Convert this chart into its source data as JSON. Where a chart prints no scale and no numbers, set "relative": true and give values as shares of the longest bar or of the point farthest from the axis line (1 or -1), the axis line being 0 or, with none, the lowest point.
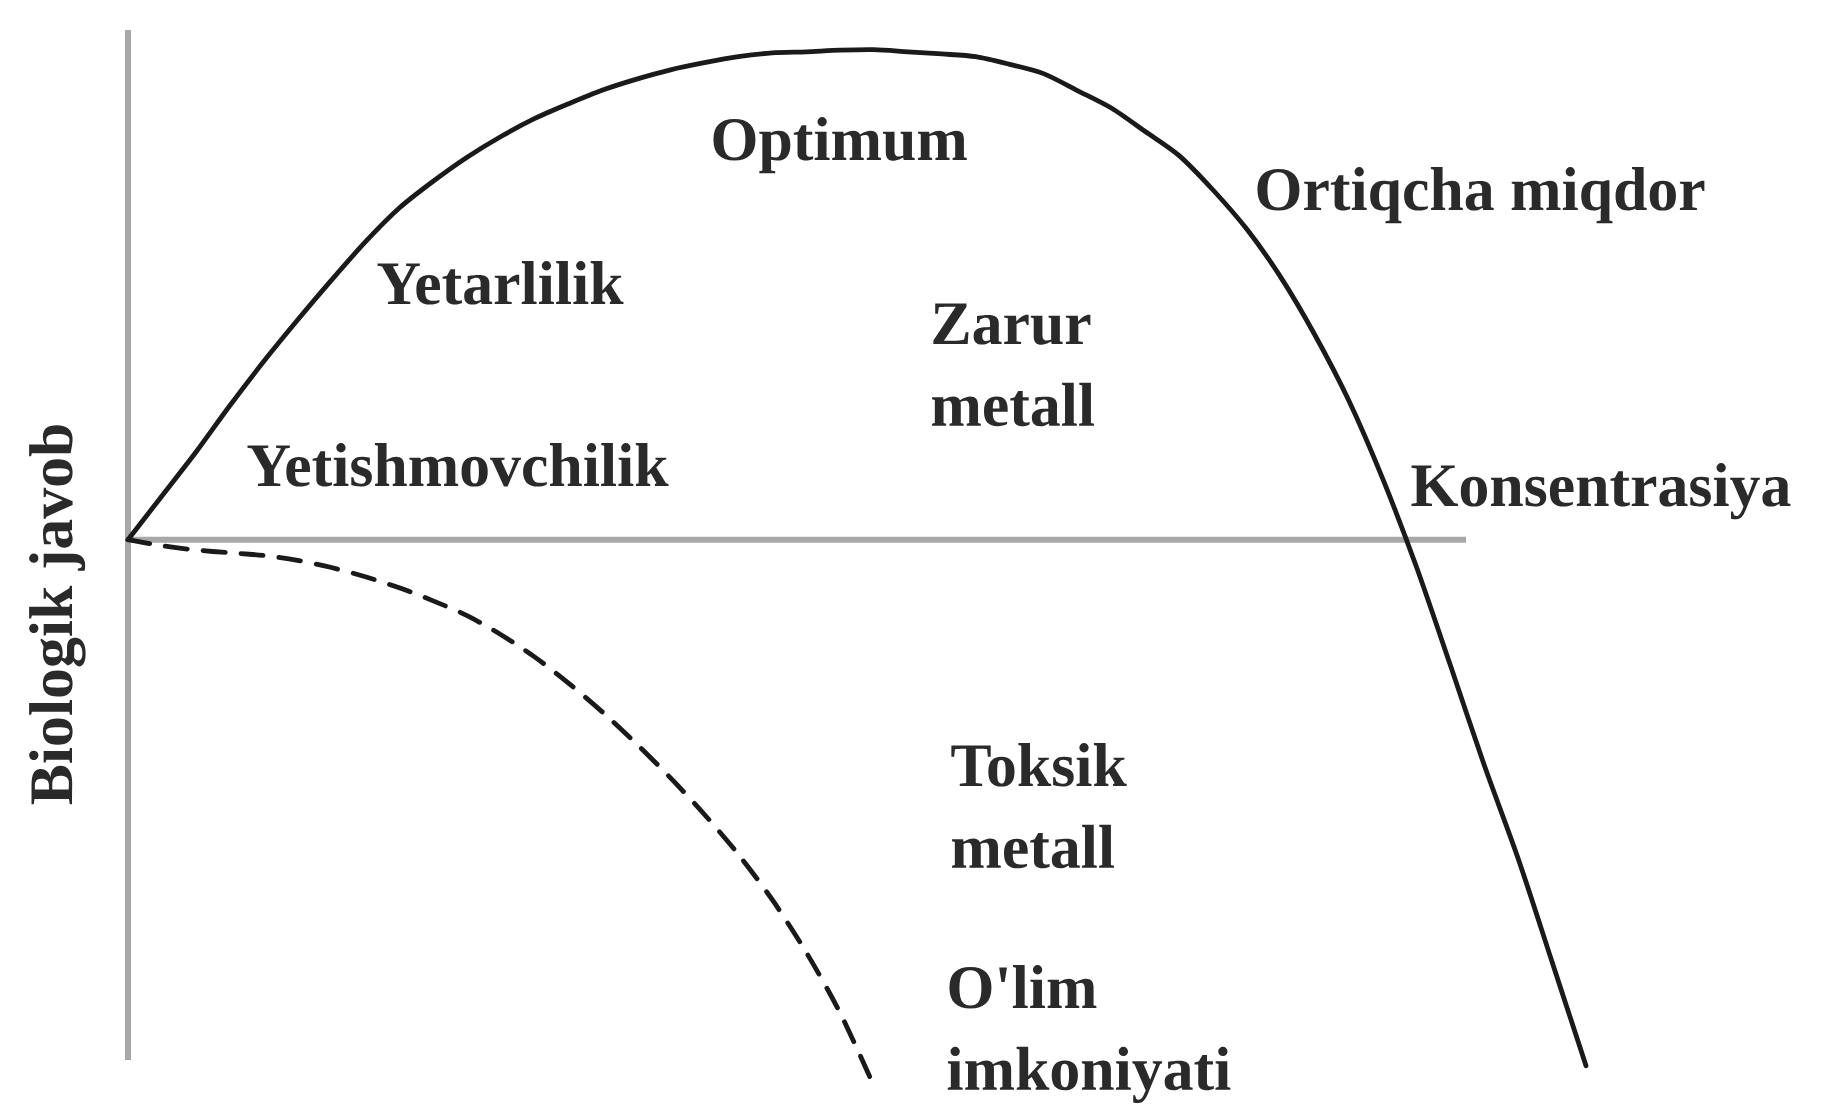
{
  "chart_data": {
    "type": "line",
    "relative": true,
    "xlabel": "Konsentrasiya",
    "ylabel": "Biologik javob",
    "categories": [
      null,
      null,
      null,
      null,
      null,
      null,
      null,
      null,
      null,
      null,
      null,
      null,
      null,
      null,
      null,
      null,
      null,
      null,
      null,
      null,
      null,
      null,
      null,
      null,
      null,
      null,
      null,
      null,
      null,
      null,
      null,
      null,
      null,
      null,
      null,
      null,
      null,
      null,
      null,
      null,
      null,
      null,
      null,
      null
    ],
    "series": [
      {
        "name": "Zarur metall",
        "color": "#1a1a1a",
        "line_style": "solid",
        "values": [
          0,
          0.08,
          0.16,
          0.245,
          0.326,
          0.402,
          0.475,
          0.545,
          0.607,
          0.656,
          0.7,
          0.738,
          0.771,
          0.798,
          0.823,
          0.843,
          0.86,
          0.873,
          0.884,
          0.891,
          0.893,
          0.896,
          0.897,
          0.893,
          0.889,
          0.884,
          0.87,
          0.853,
          0.822,
          0.79,
          0.747,
          0.703,
          0.64,
          0.568,
          0.48,
          0.375,
          0.255,
          0.112,
          -0.05,
          -0.23,
          -0.413,
          -0.584,
          -0.773,
          -0.963
        ]
      },
      {
        "name": "Toksik metall",
        "color": "#1a1a1a",
        "line_style": "dashed",
        "values": [
          0,
          -0.011,
          -0.019,
          -0.024,
          -0.029,
          -0.038,
          -0.051,
          -0.068,
          -0.088,
          -0.112,
          -0.139,
          -0.174,
          -0.215,
          -0.263,
          -0.316,
          -0.374,
          -0.436,
          -0.503,
          -0.576,
          -0.659,
          -0.755,
          -0.866,
          -1,
          null,
          null,
          null,
          null,
          null,
          null,
          null,
          null,
          null,
          null,
          null,
          null,
          null,
          null,
          null,
          null,
          null,
          null,
          null,
          null,
          null
        ]
      }
    ],
    "annotations": [
      "Yetishmovchilik",
      "Yetarlilik",
      "Optimum",
      "Ortiqcha miqdor",
      "O'lim imkoniyati"
    ],
    "marker": "none"
  }
}
